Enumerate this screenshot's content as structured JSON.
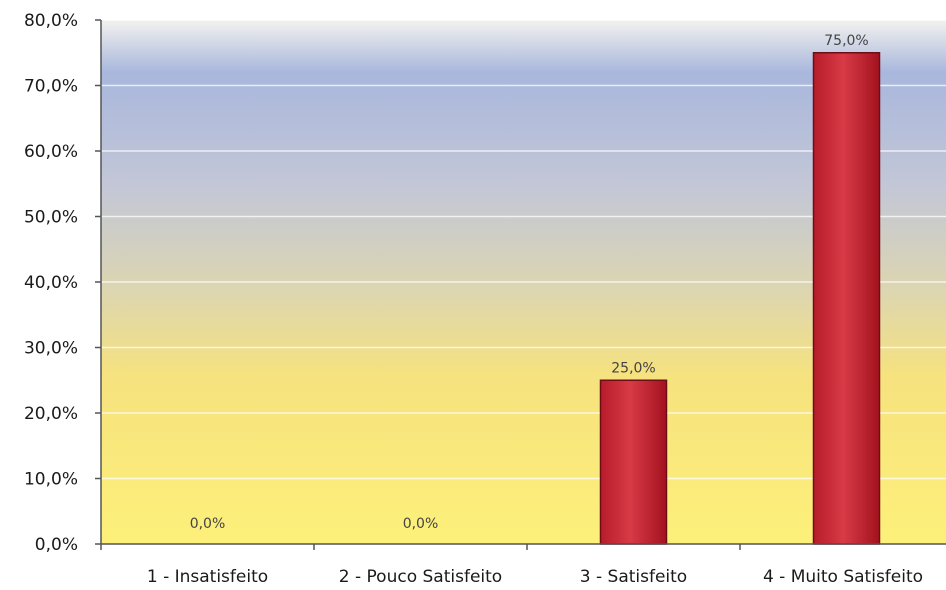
{
  "chart_data": {
    "type": "bar",
    "categories": [
      "1 - Insatisfeito",
      "2 - Pouco Satisfeito",
      "3 - Satisfeito",
      "4 - Muito Satisfeito"
    ],
    "values": [
      0.0,
      0.0,
      25.0,
      75.0
    ],
    "data_labels": [
      "0,0%",
      "0,0%",
      "25,0%",
      "75,0%"
    ],
    "y_ticks": [
      0,
      10,
      20,
      30,
      40,
      50,
      60,
      70,
      80
    ],
    "y_tick_labels": [
      "0,0%",
      "10,0%",
      "20,0%",
      "30,0%",
      "40,0%",
      "50,0%",
      "60,0%",
      "70,0%",
      "80,0%"
    ],
    "ylim": [
      0,
      80
    ],
    "title": "",
    "xlabel": "",
    "ylabel": "",
    "grid": true,
    "legend": "none",
    "colors": {
      "bar": "#c8202e",
      "bar_highlight": "#e24a55",
      "background_top": "#a9b7dd",
      "background_bottom": "#fdf07a",
      "gridline": "#ffffff"
    }
  }
}
